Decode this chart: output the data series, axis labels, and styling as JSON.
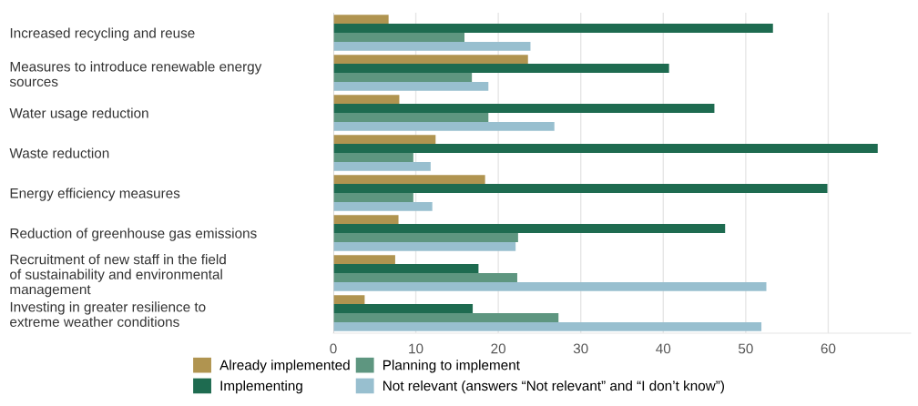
{
  "chart_data": {
    "type": "bar",
    "orientation": "horizontal",
    "categories": [
      "Increased recycling and reuse",
      "Measures to introduce renewable energy\nsources",
      "Water usage reduction",
      "Waste reduction",
      "Energy efficiency measures",
      "Reduction of greenhouse gas emissions",
      "Recruitment of new staff in the field\nof sustainability and environmental\nmanagement",
      "Investing in greater resilience to\nextreme weather conditions"
    ],
    "series": [
      {
        "name": "Already implemented",
        "color": "#b09450",
        "values": [
          6.7,
          23.6,
          8.0,
          12.4,
          18.4,
          7.9,
          7.5,
          3.8
        ]
      },
      {
        "name": "Implementing",
        "color": "#1e6b50",
        "values": [
          53.3,
          40.7,
          46.2,
          66.0,
          59.9,
          47.5,
          17.6,
          16.9
        ]
      },
      {
        "name": "Planning to implement",
        "color": "#5e9680",
        "values": [
          15.9,
          16.8,
          18.8,
          9.7,
          9.7,
          22.4,
          22.3,
          27.3
        ]
      },
      {
        "name": "Not relevant (answers “Not relevant” and “I don’t know”)",
        "color": "#98bfcf",
        "values": [
          23.9,
          18.8,
          26.8,
          11.8,
          12.0,
          22.1,
          52.5,
          51.9
        ]
      }
    ],
    "xlim": [
      0,
      70
    ],
    "xticks": [
      0,
      10,
      20,
      30,
      40,
      50,
      60
    ],
    "grid": "x",
    "legend": "bottom"
  }
}
